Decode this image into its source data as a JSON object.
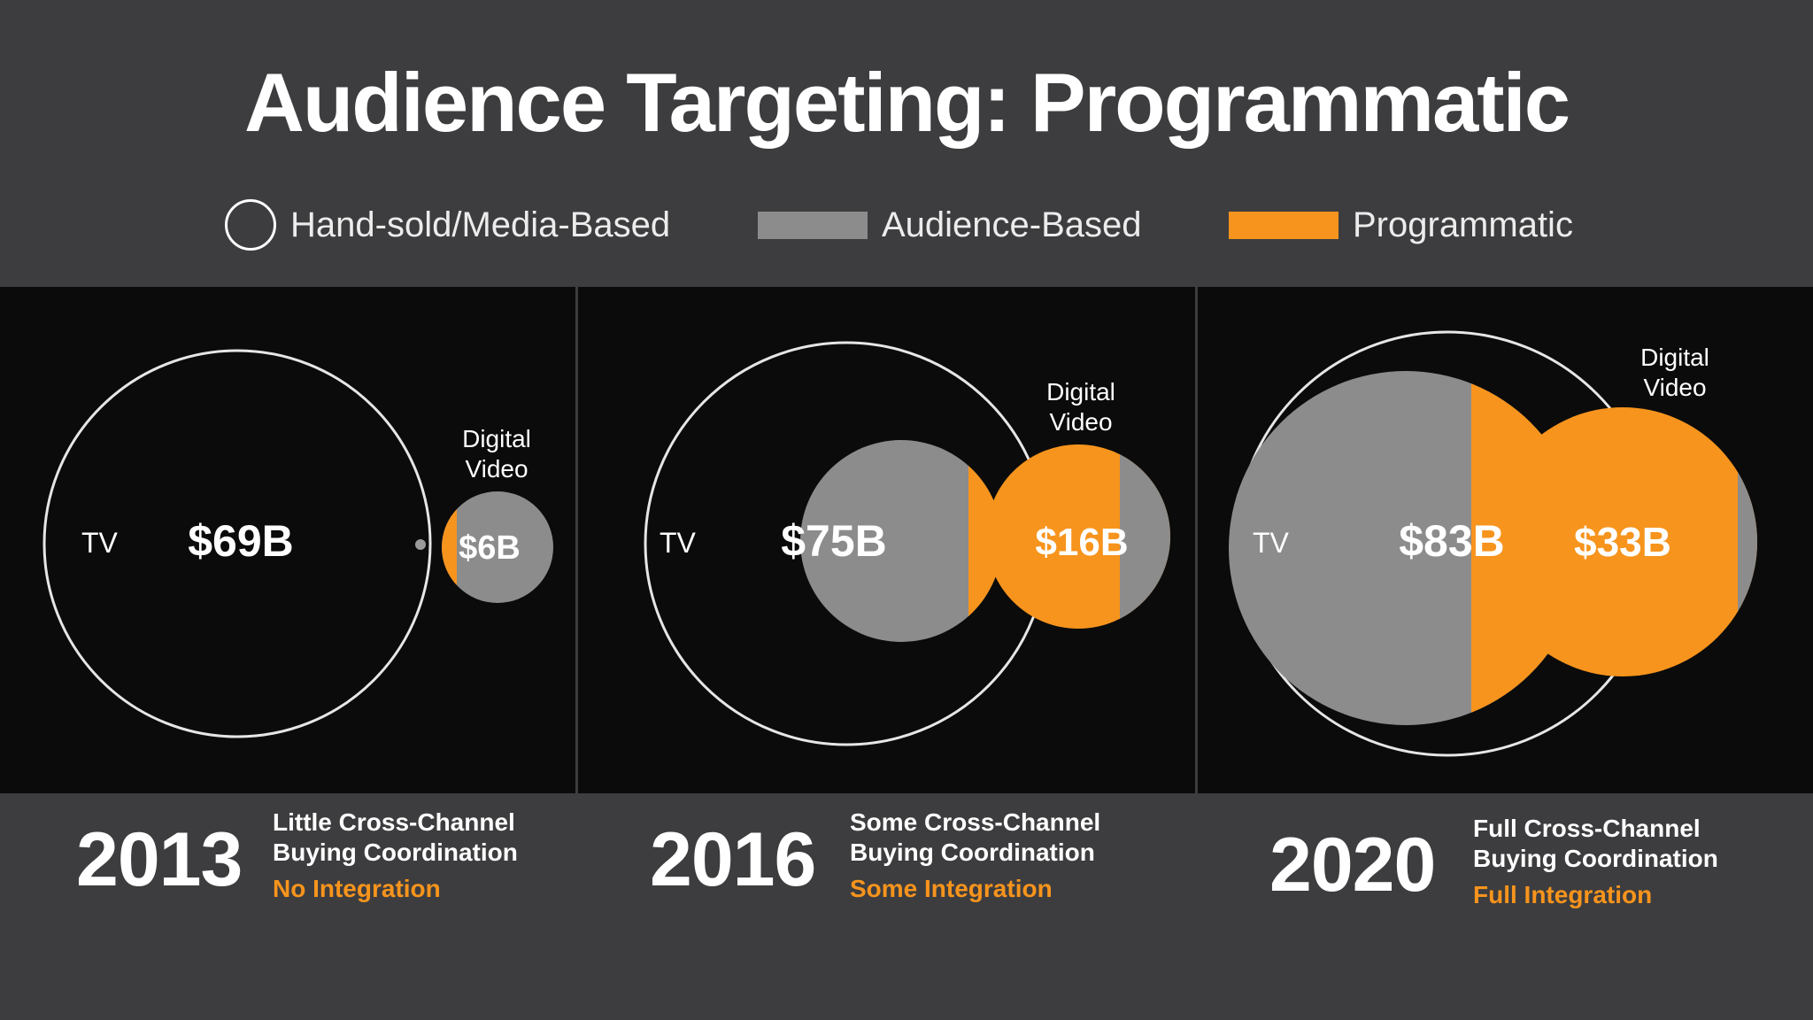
{
  "title": "Audience Targeting: Programmatic",
  "legend": [
    {
      "label": "Hand-sold/Media-Based",
      "swatch": "circle-outline",
      "color": "#ffffff"
    },
    {
      "label": "Audience-Based",
      "swatch": "rect",
      "color": "#8c8c8c"
    },
    {
      "label": "Programmatic",
      "swatch": "rect",
      "color": "#f7941d"
    }
  ],
  "colors": {
    "audience": "#8c8c8c",
    "programmatic": "#f7941d",
    "outline": "#e6e6e6"
  },
  "panels": [
    {
      "year": "2013",
      "description_line1": "Little Cross-Channel",
      "description_line2": "Buying Coordination",
      "integration": "No Integration",
      "tv_label": "TV",
      "tv_value": "$69B",
      "digital_label_line1": "Digital",
      "digital_label_line2": "Video",
      "digital_value": "$6B"
    },
    {
      "year": "2016",
      "description_line1": "Some Cross-Channel",
      "description_line2": "Buying Coordination",
      "integration": "Some Integration",
      "tv_label": "TV",
      "tv_value": "$75B",
      "digital_label_line1": "Digital",
      "digital_label_line2": "Video",
      "digital_value": "$16B"
    },
    {
      "year": "2020",
      "description_line1": "Full Cross-Channel",
      "description_line2": "Buying Coordination",
      "integration": "Full Integration",
      "tv_label": "TV",
      "tv_value": "$83B",
      "digital_label_line1": "Digital",
      "digital_label_line2": "Video",
      "digital_value": "$33B"
    }
  ]
}
